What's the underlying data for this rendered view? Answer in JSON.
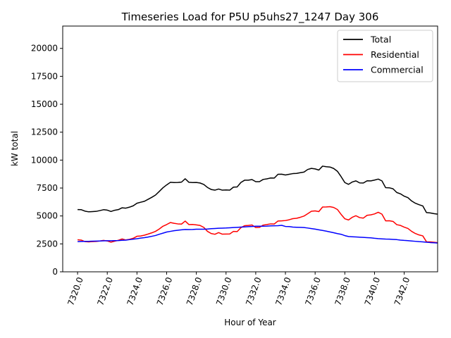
{
  "chart_data": {
    "type": "line",
    "title": "Timeseries Load for P5U p5uhs27_1247  Day 306",
    "xlabel": "Hour of Year",
    "ylabel": "kW total",
    "xlim": [
      7319.0,
      7344.25
    ],
    "ylim": [
      0,
      22000
    ],
    "x_ticks": [
      7320,
      7322,
      7324,
      7326,
      7328,
      7330,
      7332,
      7334,
      7336,
      7338,
      7340,
      7342
    ],
    "x_tick_labels": [
      "7320.0",
      "7322.0",
      "7324.0",
      "7326.0",
      "7328.0",
      "7330.0",
      "7332.0",
      "7334.0",
      "7336.0",
      "7338.0",
      "7340.0",
      "7342.0"
    ],
    "y_ticks": [
      0,
      2500,
      5000,
      7500,
      10000,
      12500,
      15000,
      17500,
      20000
    ],
    "y_tick_labels": [
      "0",
      "2500",
      "5000",
      "7500",
      "10000",
      "12500",
      "15000",
      "17500",
      "20000"
    ],
    "legend_position": "top-right",
    "x_start": 7320.0,
    "x_step": 0.25,
    "series": [
      {
        "name": "Total",
        "color": "#000000",
        "values": [
          5570,
          5560,
          5430,
          5370,
          5390,
          5410,
          5480,
          5560,
          5520,
          5400,
          5510,
          5570,
          5730,
          5700,
          5790,
          5910,
          6140,
          6230,
          6310,
          6490,
          6670,
          6870,
          7190,
          7520,
          7780,
          8010,
          7990,
          8000,
          8030,
          8330,
          8010,
          7990,
          8000,
          7950,
          7820,
          7550,
          7370,
          7310,
          7410,
          7310,
          7330,
          7310,
          7580,
          7600,
          8000,
          8200,
          8200,
          8260,
          8070,
          8070,
          8270,
          8320,
          8400,
          8390,
          8730,
          8740,
          8670,
          8730,
          8790,
          8810,
          8870,
          8930,
          9160,
          9260,
          9210,
          9110,
          9460,
          9410,
          9380,
          9250,
          9000,
          8520,
          7990,
          7830,
          8040,
          8140,
          7960,
          7950,
          8150,
          8140,
          8210,
          8300,
          8140,
          7530,
          7520,
          7430,
          7100,
          6980,
          6770,
          6640,
          6340,
          6140,
          6010,
          5900,
          5300,
          5270,
          5210,
          5160
        ]
      },
      {
        "name": "Residential",
        "color": "#ff0000",
        "values": [
          2870,
          2840,
          2700,
          2680,
          2700,
          2720,
          2760,
          2810,
          2760,
          2650,
          2740,
          2820,
          2940,
          2850,
          2910,
          3000,
          3180,
          3210,
          3280,
          3380,
          3490,
          3620,
          3830,
          4080,
          4230,
          4410,
          4340,
          4290,
          4270,
          4540,
          4230,
          4240,
          4200,
          4150,
          3980,
          3620,
          3430,
          3360,
          3510,
          3370,
          3380,
          3390,
          3620,
          3600,
          3950,
          4130,
          4150,
          4190,
          3960,
          3980,
          4180,
          4230,
          4290,
          4280,
          4550,
          4560,
          4590,
          4660,
          4760,
          4790,
          4880,
          4990,
          5200,
          5420,
          5450,
          5390,
          5800,
          5810,
          5830,
          5760,
          5580,
          5140,
          4750,
          4640,
          4880,
          5020,
          4850,
          4810,
          5060,
          5100,
          5180,
          5330,
          5160,
          4560,
          4570,
          4510,
          4220,
          4150,
          4000,
          3880,
          3620,
          3430,
          3300,
          3220,
          2690,
          2680,
          2650,
          2610
        ]
      },
      {
        "name": "Commercial",
        "color": "#0000ff",
        "values": [
          2700,
          2720,
          2730,
          2730,
          2740,
          2750,
          2760,
          2770,
          2780,
          2780,
          2790,
          2800,
          2820,
          2840,
          2880,
          2920,
          2960,
          3020,
          3060,
          3110,
          3180,
          3250,
          3360,
          3460,
          3560,
          3620,
          3680,
          3720,
          3760,
          3790,
          3780,
          3790,
          3810,
          3810,
          3810,
          3830,
          3860,
          3880,
          3900,
          3910,
          3920,
          3940,
          3960,
          3980,
          4000,
          4020,
          4040,
          4060,
          4080,
          4080,
          4080,
          4090,
          4110,
          4120,
          4130,
          4160,
          4060,
          4050,
          4000,
          3990,
          3980,
          3960,
          3920,
          3870,
          3820,
          3760,
          3700,
          3640,
          3570,
          3500,
          3420,
          3360,
          3240,
          3160,
          3140,
          3120,
          3100,
          3080,
          3060,
          3040,
          3000,
          2970,
          2950,
          2930,
          2920,
          2900,
          2880,
          2840,
          2810,
          2790,
          2760,
          2730,
          2700,
          2680,
          2650,
          2620,
          2600,
          2580
        ]
      }
    ]
  }
}
